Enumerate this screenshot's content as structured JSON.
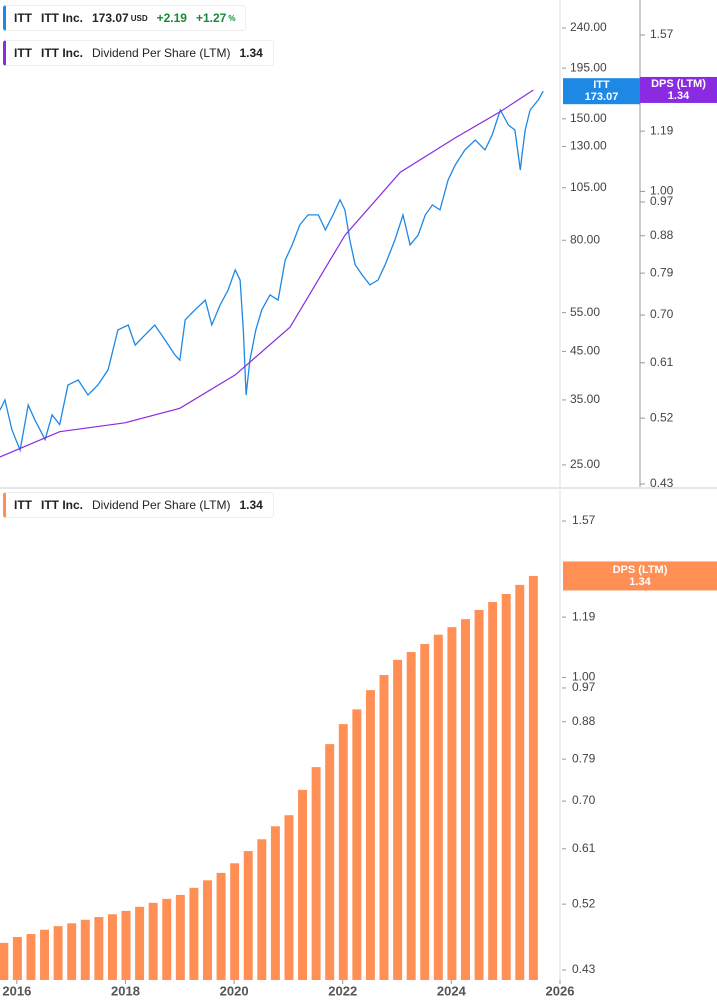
{
  "chart_data": [
    {
      "type": "line",
      "company": "ITT Inc.",
      "currency": "USD",
      "change": {
        "value": 2.19,
        "label": "+2.19"
      },
      "change_pct": {
        "value": 1.27,
        "label": "+1.27"
      },
      "pct_sign": "%",
      "log_y": true,
      "xlim": [
        2015.69,
        2026.0
      ],
      "ylim": [
        22.3,
        277.5
      ],
      "yticks": [
        {
          "value": 25,
          "label": "25.00"
        },
        {
          "value": 35,
          "label": "35.00"
        },
        {
          "value": 45,
          "label": "45.00"
        },
        {
          "value": 55,
          "label": "55.00"
        },
        {
          "value": 80,
          "label": "80.00"
        },
        {
          "value": 105,
          "label": "105.00"
        },
        {
          "value": 130,
          "label": "130.00"
        },
        {
          "value": 150,
          "label": "150.00"
        },
        {
          "value": 195,
          "label": "195.00"
        },
        {
          "value": 240,
          "label": "240.00"
        }
      ],
      "y2lim": [
        0.4263,
        1.737
      ],
      "y2ticks": [
        0.43,
        0.52,
        0.61,
        {
          "value": 0.7,
          "label": "0.70"
        },
        0.79,
        0.88,
        0.97,
        {
          "value": 1,
          "label": "1.00"
        },
        1.19,
        1.57
      ],
      "series": [
        {
          "name": "ITT",
          "color": "#1e88e5",
          "x": [
            2015.69,
            2015.78,
            2015.91,
            2016.06,
            2016.21,
            2016.33,
            2016.52,
            2016.65,
            2016.79,
            2016.94,
            2017.13,
            2017.31,
            2017.49,
            2017.68,
            2017.86,
            2018.05,
            2018.18,
            2018.36,
            2018.54,
            2018.73,
            2018.91,
            2019.0,
            2019.1,
            2019.28,
            2019.47,
            2019.59,
            2019.74,
            2019.89,
            2020.02,
            2020.11,
            2020.17,
            2020.22,
            2020.29,
            2020.4,
            2020.51,
            2020.66,
            2020.81,
            2020.94,
            2021.07,
            2021.21,
            2021.36,
            2021.55,
            2021.68,
            2021.82,
            2021.95,
            2022.04,
            2022.13,
            2022.23,
            2022.36,
            2022.5,
            2022.65,
            2022.78,
            2022.96,
            2023.11,
            2023.24,
            2023.39,
            2023.52,
            2023.65,
            2023.79,
            2023.94,
            2024.07,
            2024.25,
            2024.44,
            2024.62,
            2024.75,
            2024.9,
            2025.05,
            2025.17,
            2025.27,
            2025.3,
            2025.36,
            2025.45,
            2025.6,
            2025.69
          ],
          "values": [
            33.2,
            35.0,
            30.0,
            27.0,
            34.1,
            31.6,
            28.5,
            32.4,
            30.8,
            37.8,
            38.8,
            35.9,
            37.8,
            40.9,
            50.3,
            51.6,
            46.5,
            49.0,
            51.6,
            47.7,
            44.2,
            43.0,
            53.0,
            55.8,
            58.7,
            51.6,
            57.2,
            61.8,
            68.6,
            65.1,
            50.3,
            35.9,
            43.0,
            50.3,
            55.8,
            60.3,
            58.7,
            72.2,
            78.1,
            86.6,
            91.2,
            91.2,
            84.4,
            91.2,
            98.6,
            93.6,
            80.1,
            70.4,
            66.8,
            63.5,
            65.1,
            70.4,
            80.1,
            91.2,
            78.1,
            82.2,
            91.2,
            96.0,
            93.6,
            109.3,
            118.1,
            127.7,
            134.4,
            127.7,
            137.9,
            157.0,
            145.3,
            141.6,
            115.1,
            124.4,
            141.6,
            157.0,
            165.4,
            173.07
          ]
        },
        {
          "name": "DPS (LTM)",
          "description": "Dividend Per Share (LTM)",
          "color": "#8a2be2",
          "axis": "y2",
          "x": [
            2015.69,
            2016.79,
            2017.99,
            2019.0,
            2020.02,
            2021.03,
            2022.04,
            2023.06,
            2024.07,
            2024.9,
            2025.51
          ],
          "values": [
            0.465,
            0.5,
            0.513,
            0.535,
            0.589,
            0.676,
            0.881,
            1.057,
            1.167,
            1.259,
            1.34
          ]
        }
      ]
    },
    {
      "type": "bar",
      "log_y": true,
      "xlim": [
        2015.69,
        2026.0
      ],
      "xticks": [
        2016,
        2018,
        2020,
        2022,
        2024,
        2026
      ],
      "ylim": [
        0.4178,
        1.717
      ],
      "yticks": [
        0.43,
        0.52,
        0.61,
        {
          "value": 0.7,
          "label": "0.70"
        },
        0.79,
        0.88,
        0.97,
        {
          "value": 1,
          "label": "1.00"
        },
        1.19,
        1.57
      ],
      "series": [
        {
          "name": "DPS (LTM)",
          "description": "Dividend Per Share (LTM)",
          "color": "#ff8f55",
          "x": [
            2015.76,
            2016.01,
            2016.26,
            2016.51,
            2016.76,
            2017.01,
            2017.26,
            2017.51,
            2017.76,
            2018.01,
            2018.26,
            2018.51,
            2018.76,
            2019.01,
            2019.26,
            2019.51,
            2019.76,
            2020.01,
            2020.26,
            2020.51,
            2020.76,
            2021.01,
            2021.26,
            2021.51,
            2021.76,
            2022.01,
            2022.26,
            2022.51,
            2022.76,
            2023.01,
            2023.26,
            2023.51,
            2023.76,
            2024.01,
            2024.26,
            2024.51,
            2024.76,
            2025.01,
            2025.26,
            2025.51
          ],
          "values": [
            0.465,
            0.473,
            0.477,
            0.483,
            0.488,
            0.492,
            0.497,
            0.501,
            0.505,
            0.51,
            0.516,
            0.522,
            0.528,
            0.534,
            0.545,
            0.557,
            0.569,
            0.585,
            0.606,
            0.627,
            0.651,
            0.672,
            0.723,
            0.772,
            0.825,
            0.874,
            0.912,
            0.964,
            1.007,
            1.052,
            1.076,
            1.101,
            1.131,
            1.156,
            1.183,
            1.215,
            1.243,
            1.272,
            1.306,
            1.34
          ]
        }
      ]
    }
  ]
}
